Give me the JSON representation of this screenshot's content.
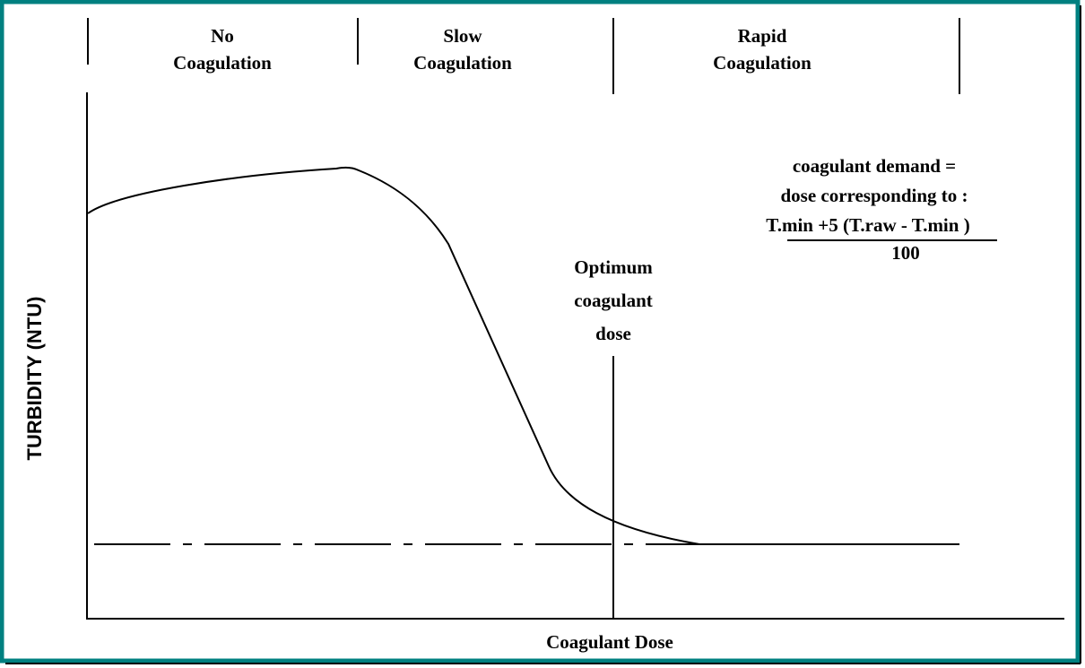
{
  "zones": [
    {
      "lines": [
        "No",
        "Coagulation"
      ]
    },
    {
      "lines": [
        "Slow",
        "Coagulation"
      ]
    },
    {
      "lines": [
        "Rapid",
        "Coagulation"
      ]
    }
  ],
  "y_axis_label": "TURBIDITY (NTU)",
  "x_axis_label": "Coagulant Dose",
  "optimum": {
    "lines": [
      "Optimum",
      "coagulant",
      "dose"
    ]
  },
  "formula": {
    "lines": [
      "coagulant demand =",
      "dose corresponding to :",
      "T.min +5 (T.raw - T.min )",
      "100"
    ]
  }
}
